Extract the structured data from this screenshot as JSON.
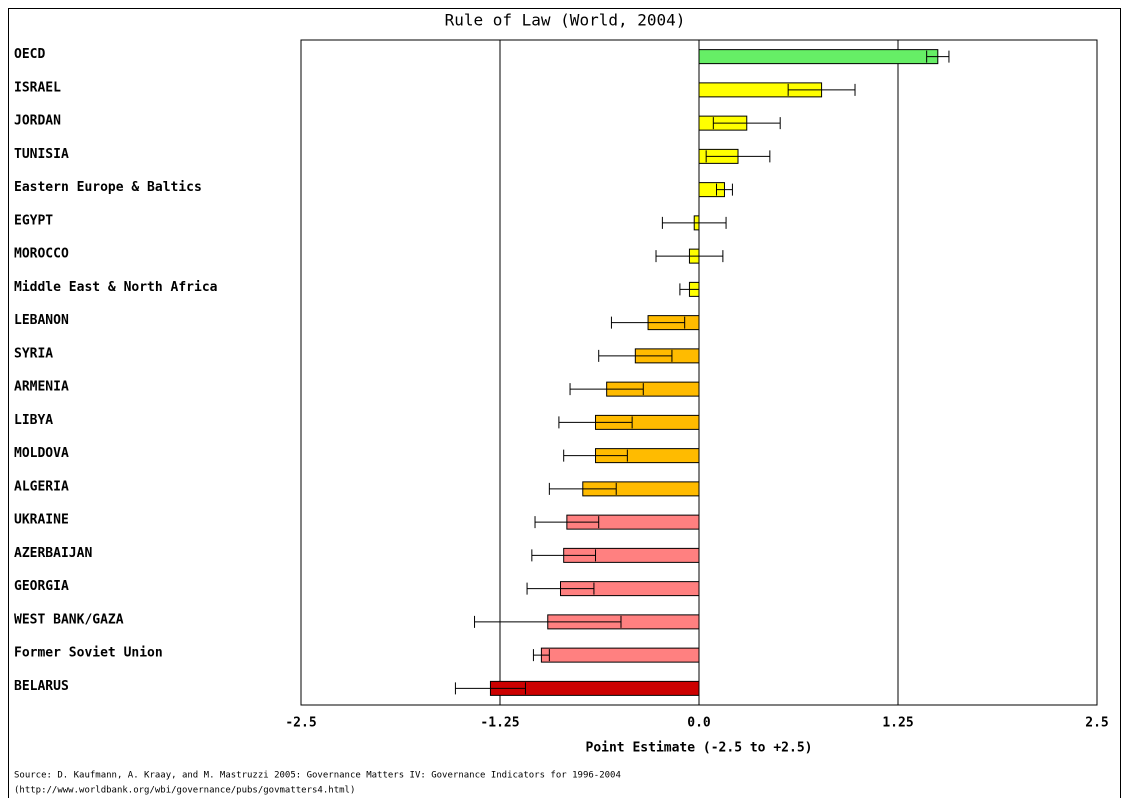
{
  "chart_data": {
    "type": "bar",
    "orientation": "horizontal",
    "title": "Rule of Law (World, 2004)",
    "x_label": "Point Estimate (-2.5 to +2.5)",
    "source": [
      "Source: D. Kaufmann, A. Kraay, and M. Mastruzzi 2005: Governance Matters IV: Governance Indicators for 1996-2004",
      "(http://www.worldbank.org/wbi/governance/pubs/govmatters4.html)"
    ],
    "categories": [
      "OECD",
      "ISRAEL",
      "JORDAN",
      "TUNISIA",
      "Eastern Europe & Baltics",
      "EGYPT",
      "MOROCCO",
      "Middle East & North Africa",
      "LEBANON",
      "SYRIA",
      "ARMENIA",
      "LIBYA",
      "MOLDOVA",
      "ALGERIA",
      "UKRAINE",
      "AZERBAIJAN",
      "GEORGIA",
      "WEST BANK/GAZA",
      "Former Soviet Union",
      "BELARUS"
    ],
    "values": [
      1.5,
      0.77,
      0.3,
      0.245,
      0.16,
      -0.03,
      -0.06,
      -0.06,
      -0.32,
      -0.4,
      -0.58,
      -0.65,
      -0.65,
      -0.73,
      -0.83,
      -0.85,
      -0.87,
      -0.95,
      -0.99,
      -1.31
    ],
    "errors": [
      0.07,
      0.21,
      0.21,
      0.2,
      0.05,
      0.2,
      0.21,
      0.06,
      0.23,
      0.23,
      0.23,
      0.23,
      0.2,
      0.21,
      0.2,
      0.2,
      0.21,
      0.46,
      0.05,
      0.22
    ],
    "colors": [
      "#66ee66",
      "#ffff00",
      "#ffff00",
      "#ffff00",
      "#ffff00",
      "#ffff00",
      "#ffff00",
      "#ffff00",
      "#ffbb00",
      "#ffbb00",
      "#ffbb00",
      "#ffbb00",
      "#ffbb00",
      "#ffbb00",
      "#ff8080",
      "#ff8080",
      "#ff8080",
      "#ff8080",
      "#ff8080",
      "#cc0000"
    ],
    "xlim": [
      -2.5,
      2.5
    ],
    "xticks": [
      -2.5,
      -1.25,
      {
        "value": 0,
        "label": "0.0"
      },
      1.25,
      2.5
    ],
    "grid": true
  }
}
